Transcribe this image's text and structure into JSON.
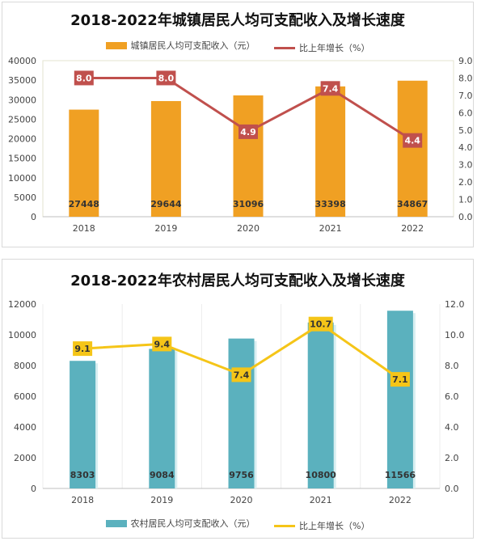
{
  "chart_data": [
    {
      "type": "bar",
      "title": "2018-2022年城镇居民人均可支配收入及增长速度",
      "categories": [
        "2018",
        "2019",
        "2020",
        "2021",
        "2022"
      ],
      "series": [
        {
          "name": "城镇居民人均可支配收入（元）",
          "type": "bar",
          "axis": "left",
          "values": [
            27448,
            29644,
            31096,
            33398,
            34867
          ],
          "labels": [
            "27448",
            "29644",
            "31096",
            "33398",
            "34867"
          ]
        },
        {
          "name": "比上年增长（%）",
          "type": "line",
          "axis": "right",
          "values": [
            8.0,
            8.0,
            4.9,
            7.4,
            4.4
          ],
          "labels": [
            "8.0",
            "8.0",
            "4.9",
            "7.4",
            "4.4"
          ]
        }
      ],
      "y_left": {
        "min": 0,
        "max": 40000,
        "ticks": [
          "0",
          "5000",
          "10000",
          "15000",
          "20000",
          "25000",
          "30000",
          "35000",
          "40000"
        ]
      },
      "y_right": {
        "min": 0,
        "max": 9,
        "ticks": [
          "0.0",
          "1.0",
          "2.0",
          "3.0",
          "4.0",
          "5.0",
          "6.0",
          "7.0",
          "8.0",
          "9.0"
        ]
      },
      "legend_position": "top",
      "colors": {
        "bar": "#F0A023",
        "line": "#C0504D"
      }
    },
    {
      "type": "bar",
      "title": "2018-2022年农村居民人均可支配收入及增长速度",
      "categories": [
        "2018",
        "2019",
        "2020",
        "2021",
        "2022"
      ],
      "series": [
        {
          "name": "农村居民人均可支配收入（元）",
          "type": "bar",
          "axis": "left",
          "values": [
            8303,
            9084,
            9756,
            10800,
            11566
          ],
          "labels": [
            "8303",
            "9084",
            "9756",
            "10800",
            "11566"
          ]
        },
        {
          "name": "比上年增长（%）",
          "type": "line",
          "axis": "right",
          "values": [
            9.1,
            9.4,
            7.4,
            10.7,
            7.1
          ],
          "labels": [
            "9.1",
            "9.4",
            "7.4",
            "10.7",
            "7.1"
          ]
        }
      ],
      "y_left": {
        "min": 0,
        "max": 12000,
        "ticks": [
          "0",
          "2000",
          "4000",
          "6000",
          "8000",
          "10000",
          "12000"
        ]
      },
      "y_right": {
        "min": 0,
        "max": 12,
        "ticks": [
          "0.0",
          "2.0",
          "4.0",
          "6.0",
          "8.0",
          "10.0",
          "12.0"
        ]
      },
      "legend_position": "bottom",
      "colors": {
        "bar": "#5BB1BE",
        "line": "#F5C518"
      }
    }
  ]
}
